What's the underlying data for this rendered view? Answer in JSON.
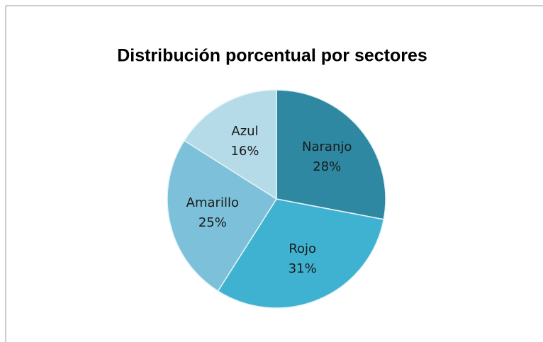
{
  "chart_data": {
    "type": "pie",
    "title": "Distribución porcentual por sectores",
    "categories": [
      "Naranjo",
      "Rojo",
      "Amarillo",
      "Azul"
    ],
    "values": [
      28,
      31,
      25,
      16
    ],
    "value_labels": [
      "28%",
      "31%",
      "25%",
      "16%"
    ],
    "colors": [
      "#2e88a2",
      "#3fb2d2",
      "#7cc0da",
      "#b5dbe8"
    ]
  }
}
